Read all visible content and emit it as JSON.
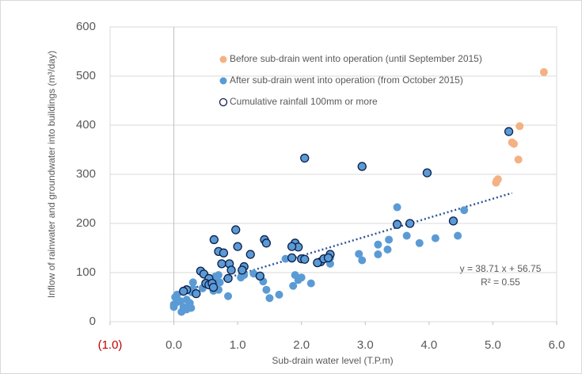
{
  "chart_data": {
    "type": "scatter",
    "xlabel": "Sub-drain water level (T.P.m)",
    "ylabel": "Inflow of rainwater and groundwater into buildings (m³/day)",
    "xlim": [
      -1,
      6
    ],
    "ylim": [
      0,
      600
    ],
    "xticks": [
      {
        "value": -1,
        "label": "(1.0)"
      },
      {
        "value": 0,
        "label": "0.0"
      },
      {
        "value": 1,
        "label": "1.0"
      },
      {
        "value": 2,
        "label": "2.0"
      },
      {
        "value": 3,
        "label": "3.0"
      },
      {
        "value": 4,
        "label": "4.0"
      },
      {
        "value": 5,
        "label": "5.0"
      },
      {
        "value": 6,
        "label": "6.0"
      }
    ],
    "yticks": [
      0,
      100,
      200,
      300,
      400,
      500,
      600
    ],
    "negative_tick_color": "#c00000",
    "grid": true,
    "series": [
      {
        "name": "Before sub-drain went into operation (until September 2015)",
        "color": "#f4b183",
        "x": [
          5.8,
          5.42,
          5.3,
          5.33,
          5.4,
          5.08,
          5.05,
          5.06
        ],
        "values": [
          508,
          398,
          365,
          362,
          330,
          290,
          283,
          287
        ]
      },
      {
        "name": "After sub-drain went into operation (from October 2015)",
        "color": "#5b9bd5",
        "x": [
          3.5,
          4.55,
          4.45,
          4.1,
          3.65,
          3.85,
          3.37,
          3.35,
          3.2,
          3.2,
          2.9,
          2.95,
          3.5,
          2.45,
          2.45,
          1.75,
          1.85,
          2.15,
          1.95,
          1.9,
          2.0,
          1.87,
          1.65,
          1.5,
          1.45,
          1.4,
          1.25,
          1.05,
          0.85,
          0.7,
          0.65,
          0.3,
          0.3,
          0.28,
          0.25,
          0.27,
          0.2,
          0.15,
          0.12,
          0.05,
          0.05,
          0.02,
          0.0,
          0.0,
          0.1,
          0.2,
          0.7,
          0.62,
          0.72,
          0.45,
          1.1
        ],
        "values": [
          233,
          227,
          175,
          170,
          175,
          160,
          167,
          147,
          157,
          137,
          138,
          125,
          200,
          118,
          130,
          128,
          128,
          78,
          85,
          95,
          90,
          73,
          55,
          48,
          65,
          82,
          98,
          90,
          52,
          95,
          92,
          80,
          67,
          60,
          38,
          28,
          45,
          30,
          20,
          40,
          55,
          50,
          30,
          35,
          42,
          25,
          65,
          63,
          80,
          68,
          95
        ]
      },
      {
        "name": "Cumulative rainfall 100mm or more",
        "color": "#5b9bd5",
        "edgecolor": "#0d1f4a",
        "x": [
          5.25,
          2.05,
          2.95,
          3.97,
          4.38,
          3.7,
          3.5,
          0.63,
          0.97,
          1.42,
          1.45,
          1.9,
          1.95,
          1.85,
          1.0,
          0.7,
          0.78,
          1.2,
          0.75,
          0.87,
          0.9,
          1.1,
          1.07,
          1.85,
          2.0,
          2.05,
          2.3,
          2.25,
          2.35,
          2.45,
          2.42,
          1.35,
          0.42,
          0.47,
          0.55,
          0.5,
          0.55,
          0.6,
          0.62,
          0.35,
          0.2,
          0.15,
          0.85
        ],
        "values": [
          387,
          333,
          316,
          303,
          205,
          200,
          198,
          167,
          187,
          167,
          160,
          160,
          152,
          153,
          153,
          143,
          140,
          137,
          118,
          118,
          105,
          112,
          105,
          130,
          128,
          127,
          122,
          120,
          128,
          137,
          130,
          93,
          103,
          97,
          88,
          78,
          75,
          78,
          70,
          57,
          65,
          62,
          88
        ]
      }
    ],
    "trendline": {
      "slope": 38.71,
      "intercept": 56.75,
      "x_range": [
        0,
        5.3
      ],
      "color": "#2f5597"
    },
    "annotations": [
      "y = 38.71 x + 56.75",
      "R² = 0.55"
    ]
  }
}
